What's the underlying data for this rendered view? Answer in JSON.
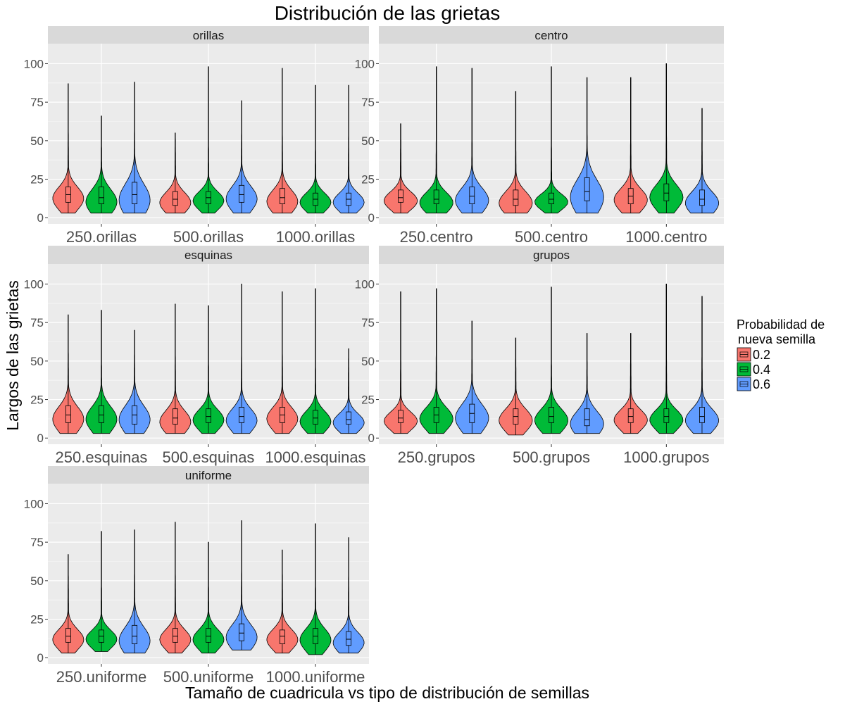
{
  "chart_data": {
    "type": "violin",
    "title": "Distribución de las grietas",
    "xlabel": "Tamaño de cuadricula vs tipo de distribución de semillas",
    "ylabel": "Largos de las grietas",
    "ylim": [
      -4,
      113
    ],
    "yticks": [
      0,
      25,
      50,
      75,
      100
    ],
    "grid": true,
    "legend": {
      "title": [
        "Probabilidad de",
        "nueva semilla"
      ],
      "position": "right",
      "entries": [
        {
          "label": "0.2",
          "color": "#F8766D"
        },
        {
          "label": "0.4",
          "color": "#00BA38"
        },
        {
          "label": "0.6",
          "color": "#619CFF"
        }
      ]
    },
    "panels": [
      {
        "name": "orillas",
        "categories": [
          "250.orillas",
          "500.orillas",
          "1000.orillas"
        ],
        "series": [
          {
            "name": "0.2",
            "stats": [
              {
                "min": 3,
                "q1": 10,
                "median": 15,
                "q3": 20,
                "max": 87
              },
              {
                "min": 3,
                "q1": 8,
                "median": 12,
                "q3": 17,
                "max": 55
              },
              {
                "min": 3,
                "q1": 9,
                "median": 13,
                "q3": 19,
                "max": 97
              }
            ]
          },
          {
            "name": "0.4",
            "stats": [
              {
                "min": 3,
                "q1": 9,
                "median": 13,
                "q3": 20,
                "max": 66
              },
              {
                "min": 3,
                "q1": 9,
                "median": 13,
                "q3": 17,
                "max": 98
              },
              {
                "min": 3,
                "q1": 8,
                "median": 12,
                "q3": 16,
                "max": 86
              }
            ]
          },
          {
            "name": "0.6",
            "stats": [
              {
                "min": 3,
                "q1": 9,
                "median": 15,
                "q3": 23,
                "max": 88
              },
              {
                "min": 3,
                "q1": 10,
                "median": 15,
                "q3": 21,
                "max": 76
              },
              {
                "min": 3,
                "q1": 8,
                "median": 12,
                "q3": 16,
                "max": 86
              }
            ]
          }
        ]
      },
      {
        "name": "centro",
        "categories": [
          "250.centro",
          "500.centro",
          "1000.centro"
        ],
        "series": [
          {
            "name": "0.2",
            "stats": [
              {
                "min": 3,
                "q1": 10,
                "median": 13,
                "q3": 18,
                "max": 61
              },
              {
                "min": 3,
                "q1": 8,
                "median": 12,
                "q3": 18,
                "max": 82
              },
              {
                "min": 3,
                "q1": 9,
                "median": 14,
                "q3": 19,
                "max": 91
              }
            ]
          },
          {
            "name": "0.4",
            "stats": [
              {
                "min": 3,
                "q1": 9,
                "median": 12,
                "q3": 18,
                "max": 98
              },
              {
                "min": 3,
                "q1": 9,
                "median": 12,
                "q3": 16,
                "max": 98
              },
              {
                "min": 3,
                "q1": 11,
                "median": 16,
                "q3": 22,
                "max": 100
              }
            ]
          },
          {
            "name": "0.6",
            "stats": [
              {
                "min": 3,
                "q1": 9,
                "median": 14,
                "q3": 20,
                "max": 97
              },
              {
                "min": 3,
                "q1": 11,
                "median": 17,
                "q3": 26,
                "max": 91
              },
              {
                "min": 3,
                "q1": 8,
                "median": 12,
                "q3": 18,
                "max": 71
              }
            ]
          }
        ]
      },
      {
        "name": "esquinas",
        "categories": [
          "250.esquinas",
          "500.esquinas",
          "1000.esquinas"
        ],
        "series": [
          {
            "name": "0.2",
            "stats": [
              {
                "min": 3,
                "q1": 10,
                "median": 15,
                "q3": 21,
                "max": 80
              },
              {
                "min": 3,
                "q1": 9,
                "median": 13,
                "q3": 19,
                "max": 87
              },
              {
                "min": 3,
                "q1": 10,
                "median": 15,
                "q3": 20,
                "max": 95
              }
            ]
          },
          {
            "name": "0.4",
            "stats": [
              {
                "min": 3,
                "q1": 10,
                "median": 15,
                "q3": 21,
                "max": 83
              },
              {
                "min": 3,
                "q1": 10,
                "median": 14,
                "q3": 19,
                "max": 86
              },
              {
                "min": 3,
                "q1": 9,
                "median": 13,
                "q3": 18,
                "max": 97
              }
            ]
          },
          {
            "name": "0.6",
            "stats": [
              {
                "min": 3,
                "q1": 9,
                "median": 15,
                "q3": 21,
                "max": 70
              },
              {
                "min": 3,
                "q1": 10,
                "median": 14,
                "q3": 20,
                "max": 100
              },
              {
                "min": 3,
                "q1": 9,
                "median": 12,
                "q3": 17,
                "max": 58
              }
            ]
          }
        ]
      },
      {
        "name": "grupos",
        "categories": [
          "250.grupos",
          "500.grupos",
          "1000.grupos"
        ],
        "series": [
          {
            "name": "0.2",
            "stats": [
              {
                "min": 3,
                "q1": 10,
                "median": 13,
                "q3": 18,
                "max": 95
              },
              {
                "min": 2,
                "q1": 9,
                "median": 14,
                "q3": 19,
                "max": 65
              },
              {
                "min": 3,
                "q1": 10,
                "median": 14,
                "q3": 19,
                "max": 68
              }
            ]
          },
          {
            "name": "0.4",
            "stats": [
              {
                "min": 3,
                "q1": 10,
                "median": 15,
                "q3": 20,
                "max": 97
              },
              {
                "min": 3,
                "q1": 10,
                "median": 14,
                "q3": 20,
                "max": 98
              },
              {
                "min": 3,
                "q1": 10,
                "median": 14,
                "q3": 19,
                "max": 100
              }
            ]
          },
          {
            "name": "0.6",
            "stats": [
              {
                "min": 3,
                "q1": 10,
                "median": 16,
                "q3": 22,
                "max": 76
              },
              {
                "min": 3,
                "q1": 8,
                "median": 12,
                "q3": 19,
                "max": 68
              },
              {
                "min": 3,
                "q1": 10,
                "median": 14,
                "q3": 20,
                "max": 92
              }
            ]
          }
        ]
      },
      {
        "name": "uniforme",
        "categories": [
          "250.uniforme",
          "500.uniforme",
          "1000.uniforme"
        ],
        "series": [
          {
            "name": "0.2",
            "stats": [
              {
                "min": 3,
                "q1": 10,
                "median": 14,
                "q3": 19,
                "max": 67
              },
              {
                "min": 3,
                "q1": 10,
                "median": 14,
                "q3": 19,
                "max": 88
              },
              {
                "min": 3,
                "q1": 9,
                "median": 14,
                "q3": 18,
                "max": 70
              }
            ]
          },
          {
            "name": "0.4",
            "stats": [
              {
                "min": 4,
                "q1": 10,
                "median": 14,
                "q3": 18,
                "max": 82
              },
              {
                "min": 3,
                "q1": 10,
                "median": 14,
                "q3": 19,
                "max": 75
              },
              {
                "min": 2,
                "q1": 9,
                "median": 14,
                "q3": 19,
                "max": 87
              }
            ]
          },
          {
            "name": "0.6",
            "stats": [
              {
                "min": 3,
                "q1": 9,
                "median": 14,
                "q3": 21,
                "max": 83
              },
              {
                "min": 5,
                "q1": 11,
                "median": 16,
                "q3": 22,
                "max": 89
              },
              {
                "min": 3,
                "q1": 8,
                "median": 12,
                "q3": 17,
                "max": 78
              }
            ]
          }
        ]
      }
    ]
  }
}
